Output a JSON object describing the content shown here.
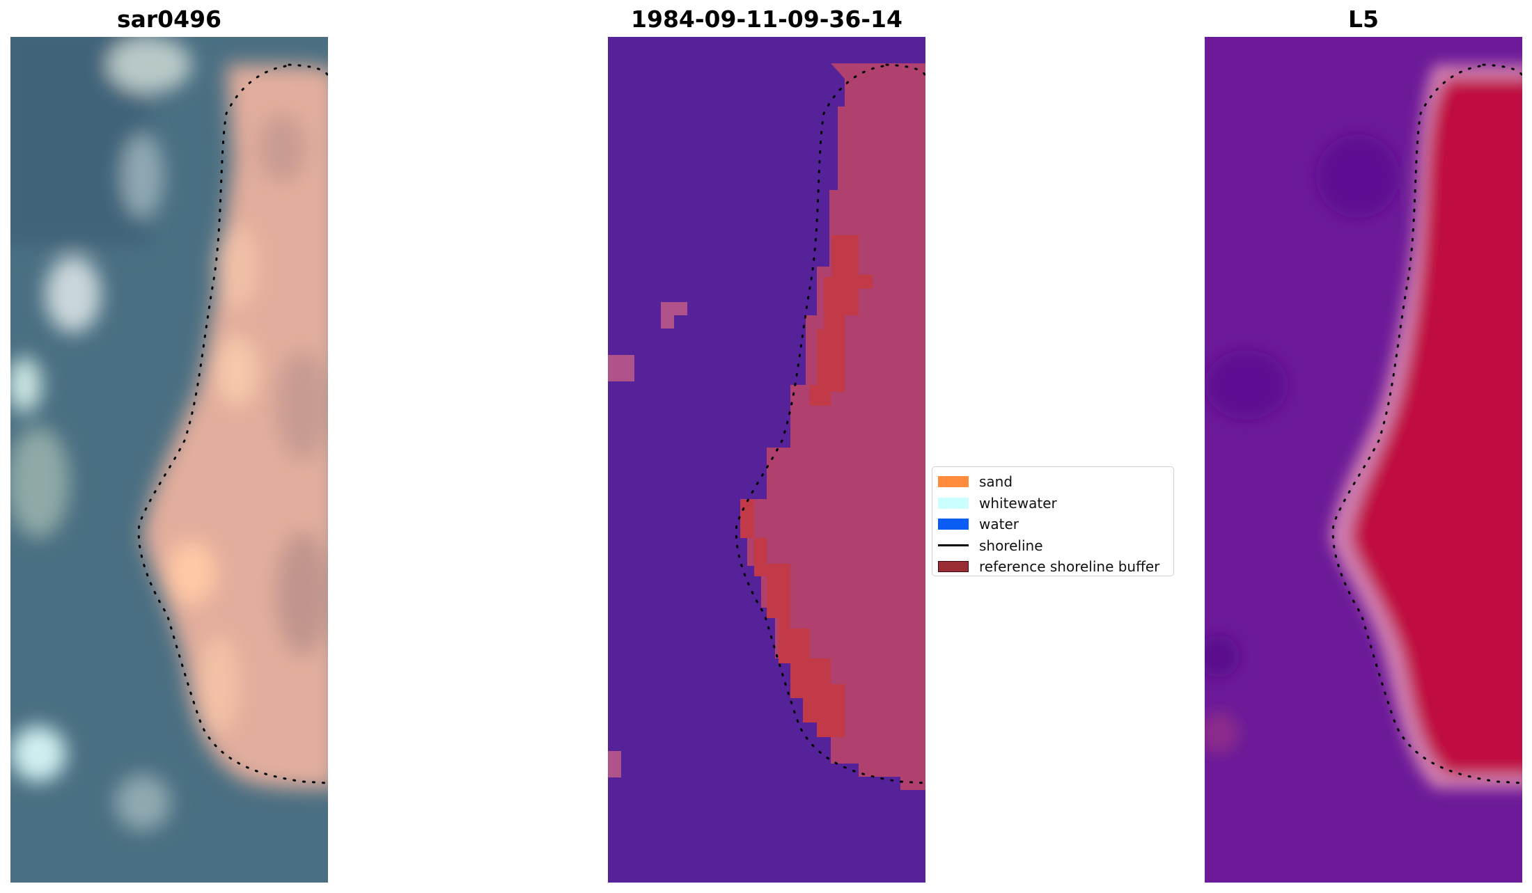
{
  "panels": [
    {
      "title": "sar0496",
      "kind": "rgb-image"
    },
    {
      "title": "1984-09-11-09-36-14",
      "kind": "classification"
    },
    {
      "title": "L5",
      "kind": "index-image"
    }
  ],
  "legend": {
    "items": [
      {
        "label": "sand",
        "color": "#ff8c3c",
        "type": "patch"
      },
      {
        "label": "whitewater",
        "color": "#ccffff",
        "type": "patch"
      },
      {
        "label": "water",
        "color": "#0a5cf5",
        "type": "patch"
      },
      {
        "label": "shoreline",
        "color": "#000000",
        "type": "line"
      },
      {
        "label": "reference shoreline buffer",
        "color": "#9a2e34",
        "type": "patch"
      }
    ]
  },
  "colors": {
    "water_class": "#55229a",
    "sand_class": "#b0406e",
    "buffer_class": "#c23a48",
    "index_low": "#6a0f9e",
    "index_high": "#c5023a",
    "rgb_water": "#476d82",
    "rgb_sand": "#e8b39e"
  }
}
